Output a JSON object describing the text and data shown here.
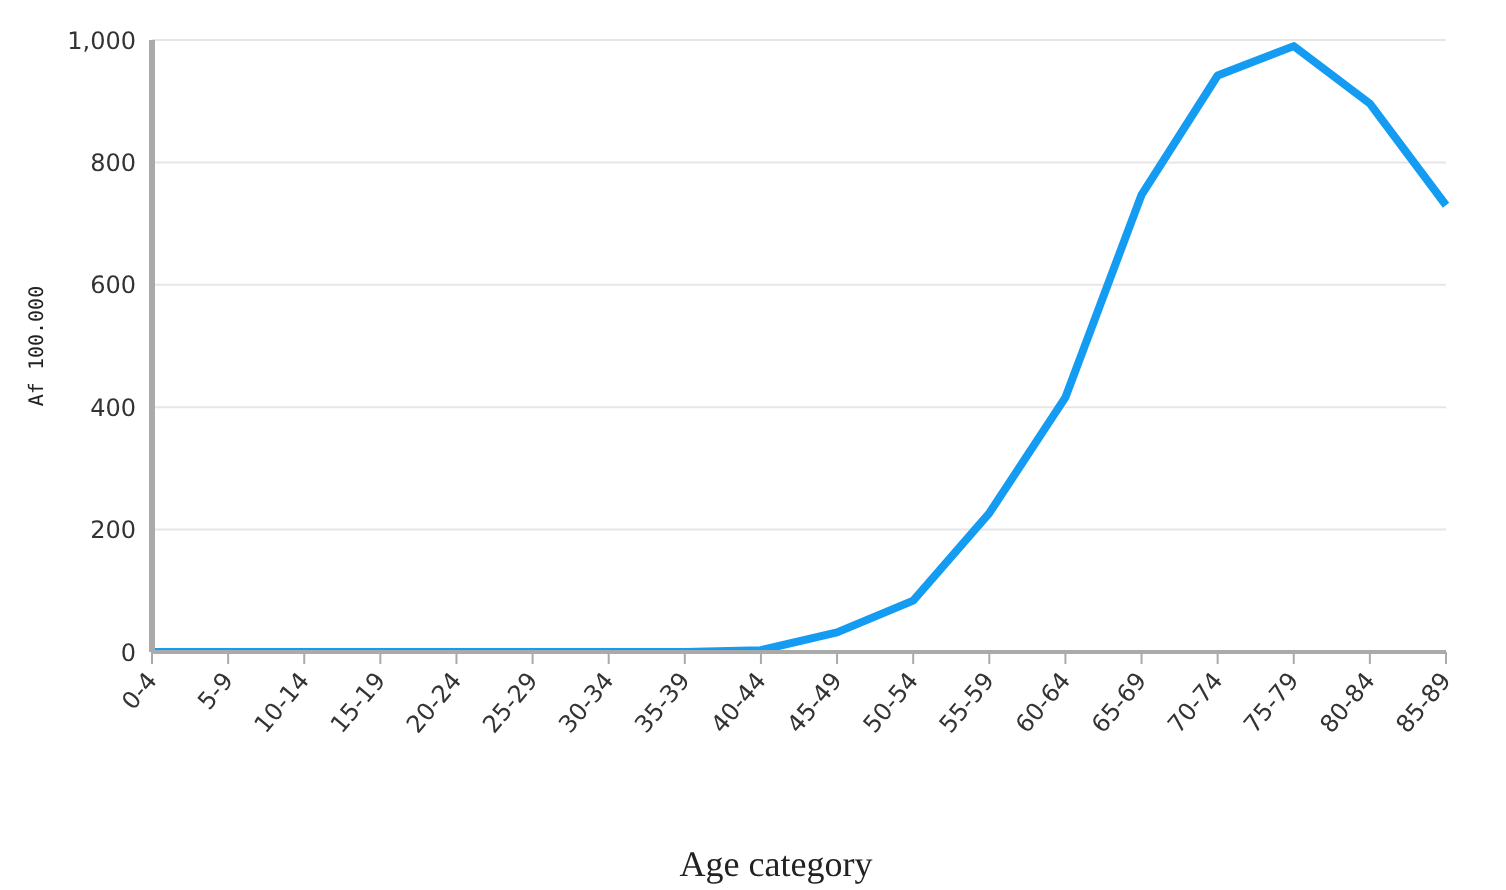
{
  "chart_data": {
    "type": "line",
    "xlabel": "Age category",
    "ylabel": "Af 100.000",
    "categories": [
      "0-4",
      "5-9",
      "10-14",
      "15-19",
      "20-24",
      "25-29",
      "30-34",
      "35-39",
      "40-44",
      "45-49",
      "50-54",
      "55-59",
      "60-64",
      "65-69",
      "70-74",
      "75-79",
      "80-84",
      "85-89"
    ],
    "series": [
      {
        "color": "#139cf2",
        "values": [
          0,
          0,
          0,
          0,
          0,
          0,
          0,
          0,
          3,
          32,
          84,
          227,
          416,
          747,
          942,
          990,
          896,
          730
        ]
      }
    ],
    "ylim": [
      0,
      1000
    ],
    "yticks": [
      0,
      200,
      400,
      600,
      800,
      {
        "value": 1000,
        "label": "1,000"
      }
    ],
    "grid": "y",
    "legend": false,
    "marker": "none",
    "line_style": "solid"
  }
}
